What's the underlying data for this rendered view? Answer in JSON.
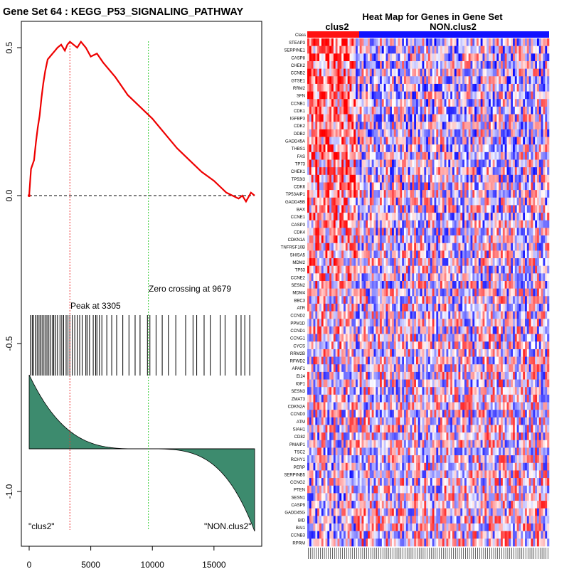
{
  "colors": {
    "es_line": "#ee0000",
    "peak_line": "#ee3333",
    "zero_line": "#33cc33",
    "metric_fill": "#3d8b6e",
    "class_a": "#ff1111",
    "class_b": "#1111ff",
    "heat_high": "#ff0000",
    "heat_low": "#0000ff"
  },
  "chart_data": [
    {
      "type": "line",
      "title": "Gene Set  64 : KEGG_P53_SIGNALING_PATHWAY",
      "xlim": [
        0,
        18500
      ],
      "ylim": [
        -1.15,
        0.58
      ],
      "x_ticks": [
        0,
        5000,
        10000,
        15000
      ],
      "x_tick_labels": [
        "0",
        "5000",
        "10000",
        "15000"
      ],
      "y_ticks": [
        0.5,
        0.0,
        -0.5,
        -1.0
      ],
      "y_tick_labels": [
        "0.5",
        "0.0",
        "-0.5",
        "-1.0"
      ],
      "running_es": {
        "x": [
          0,
          150,
          400,
          550,
          700,
          850,
          1000,
          1150,
          1300,
          1500,
          1700,
          1900,
          2100,
          2300,
          2600,
          2900,
          3100,
          3305,
          3600,
          3900,
          4200,
          4600,
          5000,
          5500,
          6000,
          7000,
          8000,
          9000,
          10000,
          11000,
          12000,
          13000,
          14000,
          15000,
          15500,
          16000,
          16500,
          17000,
          17300,
          17600,
          18000,
          18300
        ],
        "y": [
          0.0,
          0.09,
          0.12,
          0.18,
          0.23,
          0.27,
          0.33,
          0.38,
          0.42,
          0.46,
          0.47,
          0.48,
          0.49,
          0.5,
          0.51,
          0.49,
          0.51,
          0.52,
          0.51,
          0.5,
          0.52,
          0.5,
          0.47,
          0.48,
          0.45,
          0.4,
          0.34,
          0.3,
          0.26,
          0.21,
          0.16,
          0.12,
          0.08,
          0.05,
          0.03,
          0.01,
          0.0,
          -0.01,
          0.0,
          -0.02,
          0.01,
          0.0
        ]
      },
      "peak": {
        "x": 3305,
        "label": "Peak at 3305"
      },
      "zero_crossing": {
        "x": 9679,
        "label": "Zero crossing at 9679"
      },
      "hit_positions": [
        100,
        250,
        350,
        500,
        650,
        800,
        900,
        1050,
        1200,
        1350,
        1450,
        1600,
        1750,
        1900,
        2000,
        2150,
        2300,
        2500,
        2650,
        2800,
        3000,
        3150,
        3300,
        3500,
        3700,
        3900,
        4100,
        4300,
        4600,
        4700,
        4900,
        5200,
        5400,
        5500,
        5700,
        5900,
        6300,
        6700,
        7100,
        7600,
        8100,
        8600,
        9000,
        9600,
        9800,
        10300,
        10800,
        11300,
        11900,
        12700,
        13300,
        13600,
        14200,
        14700,
        15500,
        15900,
        16800,
        17200,
        17500,
        17900
      ],
      "class_labels": [
        "\"clus2\"",
        "\"NON.clus2\""
      ]
    },
    {
      "type": "heatmap",
      "title": "Heat Map for Genes in Gene Set",
      "class_row_label": "Class",
      "class_names": [
        "clus2",
        "NON.clus2"
      ],
      "class_split_fraction": 0.2,
      "genes": [
        "STEAP3",
        "SERPINE1",
        "CASP8",
        "CHEK2",
        "CCNB2",
        "GTSE1",
        "RRM2",
        "SFN",
        "CCNB1",
        "CDK1",
        "IGFBP3",
        "CDK2",
        "DDB2",
        "GADD45A",
        "THBS1",
        "FAS",
        "TP73",
        "CHEK1",
        "TP53I3",
        "CDK6",
        "TP53AIP1",
        "GADD45B",
        "BAX",
        "CCNE1",
        "CASP3",
        "CDK4",
        "CDKN1A",
        "TNFRSF10B",
        "SHISA5",
        "MDM2",
        "TP53",
        "CCNE2",
        "SESN2",
        "MDM4",
        "BBC3",
        "ATR",
        "CCND2",
        "PPM1D",
        "CCND1",
        "CCNG1",
        "CYCS",
        "RRM2B",
        "RFWD2",
        "APAF1",
        "EI24",
        "IGF1",
        "SESN3",
        "ZMAT3",
        "CDKN2A",
        "CCND3",
        "ATM",
        "SIAH1",
        "CD82",
        "PMAIP1",
        "TSC2",
        "RCHY1",
        "PERP",
        "SERPINB5",
        "CCNG2",
        "PTEN",
        "SESN1",
        "CASP9",
        "GADD45G",
        "BID",
        "BAI1",
        "CCNB3",
        "RPRM"
      ],
      "columns": 120
    }
  ]
}
